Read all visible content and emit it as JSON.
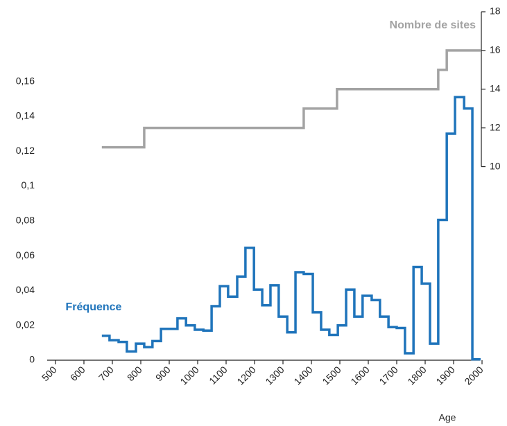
{
  "chart_data": {
    "type": "step",
    "xlabel": "Age",
    "xlim": [
      500,
      2000
    ],
    "xticks": [
      500,
      600,
      700,
      800,
      900,
      1000,
      1100,
      1200,
      1300,
      1400,
      1500,
      1600,
      1700,
      1800,
      1900,
      2000
    ],
    "ylim": [
      0,
      0.2
    ],
    "yticks": [
      0,
      {
        "value": 0.02,
        "label": "0,02"
      },
      {
        "value": 0.04,
        "label": "0,04"
      },
      {
        "value": 0.06,
        "label": "0,06"
      },
      {
        "value": 0.08,
        "label": "0,08"
      },
      {
        "value": 0.1,
        "label": "0,1"
      },
      {
        "value": 0.12,
        "label": "0,12"
      },
      {
        "value": 0.14,
        "label": "0,14"
      },
      {
        "value": 0.16,
        "label": "0,16"
      }
    ],
    "y2lim": [
      0,
      18
    ],
    "y2ticks": [
      10,
      12,
      14,
      16,
      18
    ],
    "series": [
      {
        "name": "Fréquence",
        "color": "#1f74bb",
        "x": [
          663,
          690,
          722,
          751,
          783,
          812,
          841,
          871,
          929,
          959,
          990,
          1020,
          1049,
          1078,
          1107,
          1139,
          1168,
          1198,
          1227,
          1256,
          1285,
          1315,
          1344,
          1373,
          1405,
          1434,
          1463,
          1493,
          1522,
          1551,
          1580,
          1612,
          1641,
          1671,
          1700,
          1729,
          1759,
          1788,
          1817,
          1846,
          1876,
          1905,
          1937,
          1966,
          1995
        ],
        "values": [
          0.014,
          0.0115,
          0.0105,
          0.005,
          0.0095,
          0.0075,
          0.011,
          0.018,
          0.024,
          0.02,
          0.0175,
          0.017,
          0.031,
          0.0425,
          0.0365,
          0.048,
          0.0645,
          0.0405,
          0.0315,
          0.043,
          0.025,
          0.016,
          0.0505,
          0.0495,
          0.0275,
          0.0175,
          0.0145,
          0.02,
          0.0405,
          0.025,
          0.037,
          0.0345,
          0.025,
          0.019,
          0.0185,
          0.004,
          0.0535,
          0.044,
          0.0095,
          0.0805,
          0.13,
          0.151,
          0.1445,
          0.0005,
          0.0005
        ]
      },
      {
        "name": "Nombre de sites",
        "color": "#a3a3a3",
        "axis": "y2",
        "x": [
          663,
          812,
          1373,
          1490,
          1846,
          1876,
          1995
        ],
        "values": [
          11,
          12,
          13,
          14,
          15,
          16,
          16
        ]
      }
    ]
  }
}
